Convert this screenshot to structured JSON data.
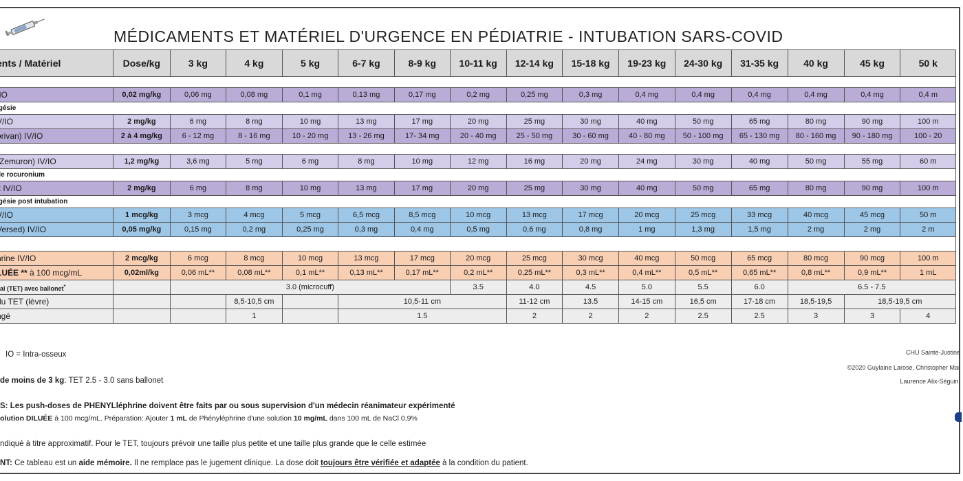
{
  "title": "MÉDICAMENTS ET MATÉRIEL D'URGENCE EN PÉDIATRIE - INTUBATION SARS-COVID",
  "icon": "syringe-icon",
  "header_cols": [
    "ents / Matériel",
    "Dose/kg",
    "3 kg",
    "4 kg",
    "5 kg",
    "6-7 kg",
    "8-9 kg",
    "10-11 kg",
    "12-14 kg",
    "15-18 kg",
    "19-23 kg",
    "24-30 kg",
    "31-35 kg",
    "40 kg",
    "45 kg",
    "50 k"
  ],
  "rows": {
    "atropine": {
      "name": "/IO",
      "dose": "0,02 mg/kg",
      "vals": [
        "0,06 mg",
        "0,08 mg",
        "0,1 mg",
        "0,13 mg",
        "0,17 mg",
        "0,2 mg",
        "0,25 mg",
        "0,3 mg",
        "0,4 mg",
        "0,4 mg",
        "0,4 mg",
        "0,4 mg",
        "0,4 mg",
        "0,4 m"
      ]
    },
    "section_analgesie": "lgésie",
    "ketamine": {
      "name": "V/IO",
      "dose": "2 mg/kg",
      "vals": [
        "6 mg",
        "8 mg",
        "10 mg",
        "13 mg",
        "17 mg",
        "20 mg",
        "25 mg",
        "30 mg",
        "40 mg",
        "50 mg",
        "65 mg",
        "80 mg",
        "90 mg",
        "100 m"
      ]
    },
    "propofol": {
      "name": "orivan) IV/IO",
      "dose": "2 à 4 mg/kg",
      "vals": [
        "6 - 12 mg",
        "8 - 16 mg",
        "10 - 20 mg",
        "13 - 26 mg",
        "17- 34 mg",
        "20 - 40 mg",
        "25 - 50 mg",
        "30 - 60 mg",
        "40 - 80 mg",
        "50 - 100 mg",
        "65 - 130 mg",
        "80 - 160 mg",
        "90 - 180 mg",
        "100 - 20"
      ]
    },
    "rocuronium": {
      "name": "(Zemuron) IV/IO",
      "dose": "1,2 mg/kg",
      "vals": [
        "3,6 mg",
        "5 mg",
        "6 mg",
        "8 mg",
        "10 mg",
        "12 mg",
        "16 mg",
        "20 mg",
        "24 mg",
        "30 mg",
        "40 mg",
        "50 mg",
        "55 mg",
        "60 m"
      ]
    },
    "section_roc": "de rocuronium",
    "sugammadex": {
      "name": "x IV/IO",
      "dose": "2 mg/kg",
      "vals": [
        "6 mg",
        "8 mg",
        "10 mg",
        "13 mg",
        "17 mg",
        "20 mg",
        "25 mg",
        "30 mg",
        "40 mg",
        "50 mg",
        "65 mg",
        "80 mg",
        "90 mg",
        "100 m"
      ]
    },
    "section_post": "lgésie post intubation",
    "fentanyl": {
      "name": "V/IO",
      "dose": "1 mcg/kg",
      "vals": [
        "3 mcg",
        "4 mcg",
        "5 mcg",
        "6,5 mcg",
        "8,5 mcg",
        "10 mcg",
        "13 mcg",
        "17 mcg",
        "20 mcg",
        "25 mcg",
        "33 mcg",
        "40 mcg",
        "45 mcg",
        "50 m"
      ]
    },
    "midazolam": {
      "name": "Versed) IV/IO",
      "dose": "0,05 mg/kg",
      "vals": [
        "0,15 mg",
        "0,2 mg",
        "0,25 mg",
        "0,3 mg",
        "0,4 mg",
        "0,5 mg",
        "0,6 mg",
        "0,8 mg",
        "1 mg",
        "1,3 mg",
        "1,5 mg",
        "2 mg",
        "2 mg",
        "2 m"
      ]
    },
    "phenyl_mcg": {
      "name": "hrine IV/IO",
      "dose": "2 mcg/kg",
      "vals": [
        "6 mcg",
        "8 mcg",
        "10 mcg",
        "13 mcg",
        "17 mcg",
        "20 mcg",
        "25 mcg",
        "30 mcg",
        "40 mcg",
        "50 mcg",
        "65 mcg",
        "80 mcg",
        "90 mcg",
        "100 m"
      ]
    },
    "phenyl_ml": {
      "name_a": "LUÉE **",
      "name_b": " à 100 mcg/mL",
      "dose": "0,02ml/kg",
      "vals": [
        "0,06 mL**",
        "0,08 mL**",
        "0,1 mL**",
        "0,13 mL**",
        "0,17 mL**",
        "0,2 mL**",
        "0,25 mL**",
        "0,3 mL**",
        "0,4 mL**",
        "0,5 mL**",
        "0,65 mL**",
        "0,8 mL**",
        "0,9 mL**",
        "1 mL"
      ]
    },
    "tet": {
      "name_a": "éal (TET) ",
      "name_b": "avec ballonet",
      "name_c": "*",
      "microcuff": "3.0 (microcuff)",
      "vals": [
        "3.5",
        "4.0",
        "4.5",
        "5.0",
        "5.5",
        "6.0",
        "6.5 - 7.5"
      ]
    },
    "tet_lip": {
      "name": "du TET (lèvre)",
      "vals": [
        "8,5-10,5 cm",
        "10,5-11 cm",
        "11-12 cm",
        "13.5",
        "14-15 cm",
        "16,5 cm",
        "17-18 cm",
        "18,5-19,5",
        "18,5-19,5 cm"
      ]
    },
    "lame": {
      "name": "ngé",
      "vals": [
        "1",
        "1.5",
        "2",
        "2",
        "2",
        "2.5",
        "2.5",
        "3",
        "3",
        "4"
      ]
    }
  },
  "footnotes": {
    "io": "IO = Intra-osseux",
    "moins3_b": "de moins de 3 kg",
    "moins3_t": ":  TET 2.5 -  3.0 sans ballonet",
    "phenyl_warn": "S: Les push-doses de PHENYLléphrine doivent être faits par ou sous supervision d'un médecin réanimateur expérimenté",
    "dilue_b": "olution DILUÉE",
    "dilue_t1": " à 100 mcg/mL. Préparation: Ajouter ",
    "dilue_b2": "1 mL",
    "dilue_t2": " de Phényléphrine d'une solution ",
    "dilue_b3": "10 mg/mL",
    "dilue_t3": " dans 100 mL de NaCl 0,9%",
    "approx": "ndiqué à titre approximatif. Pour le TET, toujours prévoir une taille plus petite et une taille plus grande que le celle estimée",
    "nt_b": "NT:",
    "nt_t1": "  Ce tableau est un ",
    "nt_b2": "aide mémoire.",
    "nt_t2": "  Il ne remplace pas le jugement clinique.  La dose doit ",
    "nt_u": "toujours être vérifiée et adaptée",
    "nt_t3": " à la condition du patient."
  },
  "credits": {
    "chu": "CHU Sainte-Justine",
    "copy": "©2020 Guylaine Larose, Christopher Mar",
    "laurence": "Laurence Alix-Séguin,"
  }
}
